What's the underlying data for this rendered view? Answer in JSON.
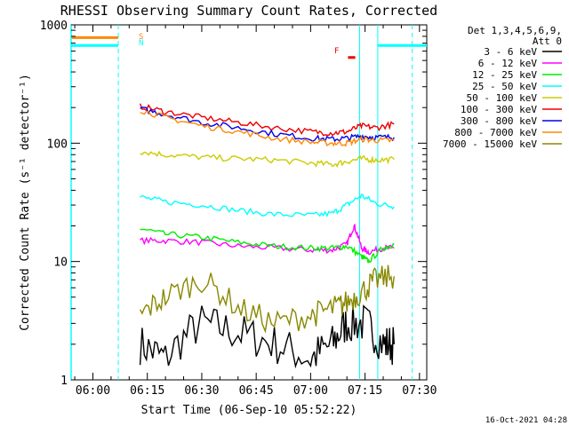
{
  "chart_data": {
    "type": "line",
    "title": "RHESSI Observing Summary Count Rates, Corrected",
    "xlabel": "Start Time (06-Sep-10 05:52:22)",
    "ylabel": "Corrected Count Rate (s⁻¹ detector⁻¹)",
    "x_unit": "minutes after 06:00",
    "xlim": [
      -6,
      92
    ],
    "ylim": [
      1,
      1000
    ],
    "yscale": "log",
    "x_ticks": [
      {
        "value": 0,
        "label": "06:00"
      },
      {
        "value": 15,
        "label": "06:15"
      },
      {
        "value": 30,
        "label": "06:30"
      },
      {
        "value": 45,
        "label": "06:45"
      },
      {
        "value": 60,
        "label": "07:00"
      },
      {
        "value": 75,
        "label": "07:15"
      },
      {
        "value": 90,
        "label": "07:30"
      }
    ],
    "y_ticks": [
      {
        "value": 1,
        "label": "1"
      },
      {
        "value": 10,
        "label": "10"
      },
      {
        "value": 100,
        "label": "100"
      },
      {
        "value": 1000,
        "label": "1000"
      }
    ],
    "legend_header": [
      "Det 1,3,4,5,6,9,",
      "Att 0"
    ],
    "legend_position": "right",
    "series": [
      {
        "name": "3 - 6 keV",
        "color": "#000000",
        "x": [
          13,
          20,
          30,
          40,
          50,
          60,
          66,
          70,
          75,
          80,
          83
        ],
        "y": [
          2,
          1.5,
          3,
          2.5,
          2,
          1.5,
          2,
          3,
          3,
          2,
          2
        ]
      },
      {
        "name": "6 - 12 keV",
        "color": "#ff00ff",
        "x": [
          13,
          20,
          30,
          40,
          50,
          60,
          66,
          70,
          72,
          74,
          76,
          80,
          83
        ],
        "y": [
          15,
          15,
          14.5,
          13.5,
          13,
          12.5,
          12.5,
          14,
          20,
          13,
          12,
          13,
          13
        ]
      },
      {
        "name": "12 - 25 keV",
        "color": "#00ee00",
        "x": [
          13,
          20,
          30,
          40,
          50,
          60,
          66,
          70,
          74,
          76,
          80,
          83
        ],
        "y": [
          19,
          17,
          16,
          14.5,
          13.5,
          13,
          13,
          13.5,
          11,
          10,
          13,
          14
        ]
      },
      {
        "name": "25 - 50 keV",
        "color": "#00ffff",
        "x": [
          13,
          20,
          30,
          40,
          50,
          60,
          66,
          70,
          74,
          78,
          83
        ],
        "y": [
          35,
          32,
          30,
          27,
          25,
          24.5,
          25.5,
          30,
          36,
          31,
          29
        ]
      },
      {
        "name": "50 - 100 keV",
        "color": "#cccc00",
        "x": [
          13,
          20,
          30,
          40,
          50,
          60,
          66,
          70,
          74,
          78,
          83
        ],
        "y": [
          85,
          80,
          76,
          74,
          72,
          68,
          66,
          70,
          74,
          72,
          73
        ]
      },
      {
        "name": "100 - 300 keV",
        "color": "#ee0000",
        "x": [
          13,
          20,
          30,
          40,
          50,
          60,
          66,
          70,
          74,
          78,
          83
        ],
        "y": [
          205,
          185,
          165,
          150,
          135,
          125,
          122,
          125,
          140,
          135,
          145
        ]
      },
      {
        "name": "300 - 800 keV",
        "color": "#0000ee",
        "x": [
          13,
          20,
          30,
          40,
          50,
          60,
          66,
          70,
          74,
          78,
          83
        ],
        "y": [
          195,
          175,
          150,
          135,
          120,
          110,
          108,
          110,
          115,
          112,
          112
        ]
      },
      {
        "name": "800 - 7000 keV",
        "color": "#ff8800",
        "x": [
          13,
          20,
          30,
          40,
          50,
          60,
          66,
          70,
          74,
          78,
          83
        ],
        "y": [
          190,
          165,
          140,
          125,
          110,
          102,
          100,
          100,
          108,
          106,
          105
        ]
      },
      {
        "name": "7000 - 15000 keV",
        "color": "#888800",
        "x": [
          13,
          20,
          30,
          40,
          50,
          60,
          66,
          70,
          74,
          78,
          83
        ],
        "y": [
          3.5,
          5,
          7,
          4,
          3,
          3.5,
          4,
          4.5,
          5.5,
          7,
          7.5
        ]
      }
    ],
    "annotations": [
      {
        "text": "S",
        "color": "#ff8800"
      },
      {
        "text": "N",
        "color": "#00ffff"
      },
      {
        "text": "F",
        "color": "#ee0000"
      }
    ],
    "timestamp": "16-Oct-2021 04:28"
  }
}
